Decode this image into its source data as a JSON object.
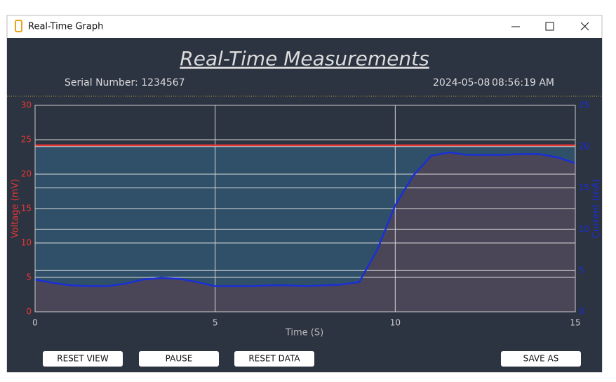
{
  "window": {
    "title": "Real-Time Graph"
  },
  "header": {
    "serial": "Serial Number: 1234567",
    "date": "2024-05-08",
    "time": "08:56:19 AM"
  },
  "buttons": [
    "RESET VIEW",
    "PAUSE",
    "RESET DATA",
    "SAVE AS"
  ],
  "chart_data": {
    "type": "line",
    "title": "Real-Time Measurements",
    "x_label": "Time (S)",
    "y_label": "Voltage (mV)",
    "y2_label": "Current (mA)",
    "x": [
      0,
      0.5,
      1,
      1.5,
      2,
      2.5,
      3,
      3.5,
      4,
      4.5,
      5,
      5.5,
      6,
      6.5,
      7,
      7.5,
      8,
      8.5,
      9,
      9.5,
      10,
      10.5,
      11,
      11.5,
      12,
      12.5,
      13,
      13.5,
      14,
      14.5,
      15
    ],
    "xlim": [
      0,
      15
    ],
    "xticks": [
      0,
      5,
      10,
      15
    ],
    "ylim": [
      0,
      30
    ],
    "yticks": [
      0,
      5,
      10,
      15,
      20,
      25,
      30
    ],
    "y2lim": [
      0,
      25
    ],
    "y2ticks": [
      0,
      5,
      10,
      15,
      20,
      25
    ],
    "grid": true,
    "series": [
      {
        "color": "#e53935",
        "fill": "#2f5068",
        "values": [
          24.2,
          24.2,
          24.2,
          24.2,
          24.2,
          24.2,
          24.2,
          24.2,
          24.2,
          24.2,
          24.2,
          24.2,
          24.2,
          24.2,
          24.2,
          24.2,
          24.2,
          24.2,
          24.2,
          24.2,
          24.2,
          24.2,
          24.2,
          24.2,
          24.2,
          24.2,
          24.2,
          24.2,
          24.2,
          24.2,
          24.2
        ]
      },
      {
        "color": "#1a2fd6",
        "fill": "#4a4658",
        "axis": "y2",
        "values": [
          3.9,
          3.5,
          3.2,
          3.1,
          3.1,
          3.4,
          3.9,
          4.1,
          4.0,
          3.6,
          3.1,
          3.1,
          3.1,
          3.2,
          3.2,
          3.1,
          3.2,
          3.3,
          3.6,
          7.5,
          12.9,
          16.5,
          18.9,
          19.3,
          19.0,
          19.0,
          19.0,
          19.1,
          19.1,
          18.7,
          18.0
        ]
      }
    ]
  }
}
